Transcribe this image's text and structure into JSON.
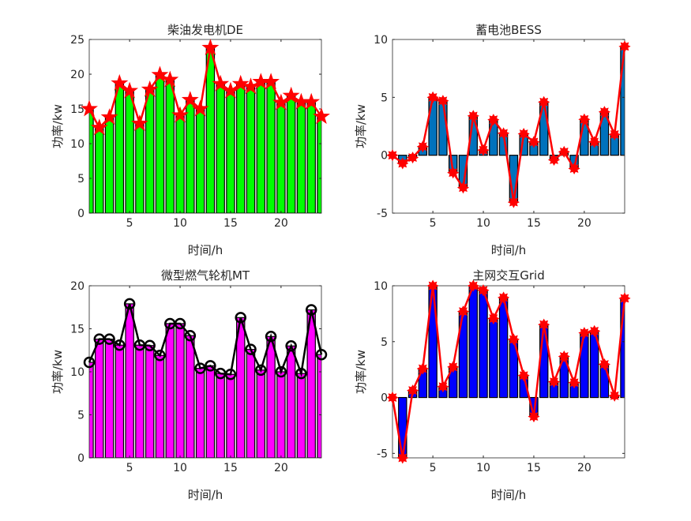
{
  "chart_data": [
    {
      "type": "bar",
      "title": "柴油发电机DE",
      "xlabel": "时间/h",
      "ylabel": "功率/kw",
      "x": [
        1,
        2,
        3,
        4,
        5,
        6,
        7,
        8,
        9,
        10,
        11,
        12,
        13,
        14,
        15,
        16,
        17,
        18,
        19,
        20,
        21,
        22,
        23,
        24
      ],
      "values": [
        15.0,
        12.3,
        13.8,
        18.7,
        17.6,
        12.9,
        17.8,
        19.9,
        19.2,
        14.1,
        16.3,
        15.0,
        23.8,
        18.6,
        17.6,
        18.6,
        18.2,
        18.9,
        18.9,
        15.9,
        16.9,
        16.0,
        16.0,
        13.9
      ],
      "xlim": [
        1,
        24
      ],
      "ylim": [
        0,
        25
      ],
      "xticks": [
        5,
        10,
        15,
        20
      ],
      "yticks": [
        0,
        5,
        10,
        15,
        20,
        25
      ],
      "bar_color": "#00ff00",
      "line_color": "#ff0000",
      "marker": "pentagram",
      "overlay_line": true
    },
    {
      "type": "bar",
      "title": "蓄电池BESS",
      "xlabel": "时间/h",
      "ylabel": "功率/kw",
      "x": [
        1,
        2,
        3,
        4,
        5,
        6,
        7,
        8,
        9,
        10,
        11,
        12,
        13,
        14,
        15,
        16,
        17,
        18,
        19,
        20,
        21,
        22,
        23,
        24
      ],
      "values": [
        0,
        -0.7,
        -0.2,
        0.75,
        5.0,
        4.7,
        -1.5,
        -2.8,
        3.4,
        0.45,
        3.07,
        1.9,
        -4.05,
        1.85,
        1.15,
        4.6,
        -0.4,
        0.3,
        -1.15,
        3.1,
        1.15,
        3.75,
        1.8,
        9.4
      ],
      "xlim": [
        1,
        24
      ],
      "ylim": [
        -5,
        10
      ],
      "xticks": [
        5,
        10,
        15,
        20
      ],
      "yticks": [
        -5,
        0,
        5,
        10
      ],
      "bar_color": "#0072bd",
      "line_color": "#ff0000",
      "marker": "asterisk",
      "overlay_line": true
    },
    {
      "type": "bar",
      "title": "微型燃气轮机MT",
      "xlabel": "时间/h",
      "ylabel": "功率/kw",
      "x": [
        1,
        2,
        3,
        4,
        5,
        6,
        7,
        8,
        9,
        10,
        11,
        12,
        13,
        14,
        15,
        16,
        17,
        18,
        19,
        20,
        21,
        22,
        23,
        24
      ],
      "values": [
        11.1,
        13.8,
        13.8,
        13.1,
        17.9,
        13.1,
        13.05,
        11.9,
        15.6,
        15.6,
        14.2,
        10.4,
        10.7,
        9.8,
        9.7,
        16.3,
        12.6,
        10.2,
        14.1,
        10.0,
        13.0,
        9.8,
        17.2,
        12.0
      ],
      "xlim": [
        1,
        24
      ],
      "ylim": [
        0,
        20
      ],
      "xticks": [
        5,
        10,
        15,
        20
      ],
      "yticks": [
        0,
        5,
        10,
        15,
        20
      ],
      "bar_color": "#ff00ff",
      "line_color": "#000000",
      "marker": "circle",
      "overlay_line": true
    },
    {
      "type": "bar",
      "title": "主网交互Grid",
      "xlabel": "时间/h",
      "ylabel": "功率/kw",
      "x": [
        1,
        2,
        3,
        4,
        5,
        6,
        7,
        8,
        9,
        10,
        11,
        12,
        13,
        14,
        15,
        16,
        17,
        18,
        19,
        20,
        21,
        22,
        23,
        24
      ],
      "values": [
        0,
        -5.4,
        0.63,
        2.58,
        10.0,
        0.98,
        2.74,
        7.7,
        10.0,
        9.6,
        7.07,
        8.95,
        5.2,
        1.97,
        -1.7,
        6.53,
        1.4,
        3.68,
        1.33,
        5.78,
        5.95,
        2.97,
        0.16,
        8.88
      ],
      "xlim": [
        1,
        24
      ],
      "ylim": [
        -5.4,
        10
      ],
      "xticks": [
        5,
        10,
        15,
        20
      ],
      "yticks": [
        -5,
        0,
        5,
        10
      ],
      "bar_color": "#0000ff",
      "line_color": "#ff0000",
      "marker": "asterisk",
      "overlay_line": true
    }
  ]
}
